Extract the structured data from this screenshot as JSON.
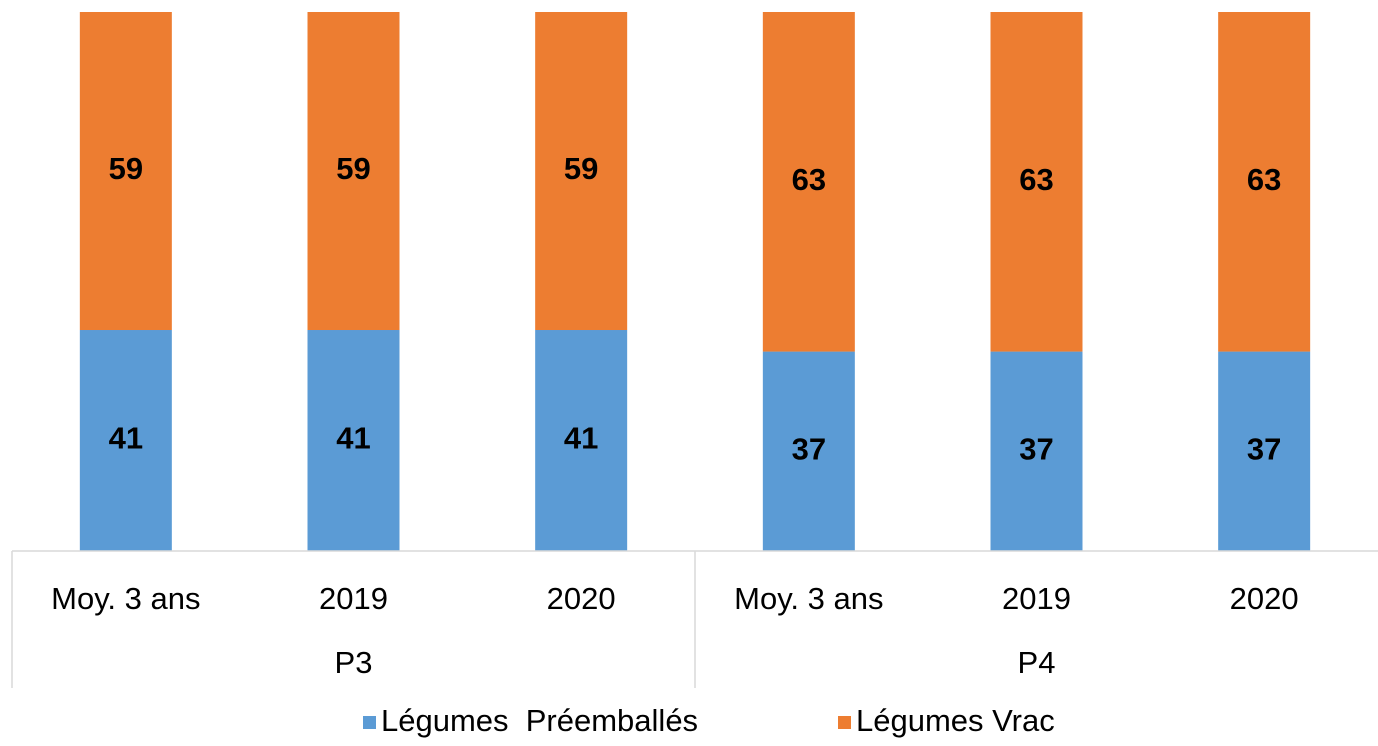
{
  "chart_data": {
    "type": "stacked_bar",
    "groups": [
      {
        "label": "P3",
        "categories": [
          "Moy. 3 ans",
          "2019",
          "2020"
        ]
      },
      {
        "label": "P4",
        "categories": [
          "Moy. 3 ans",
          "2019",
          "2020"
        ]
      }
    ],
    "series": [
      {
        "name": "Légumes  Préemballés",
        "color": "#5b9bd5",
        "values": [
          41,
          41,
          41,
          37,
          37,
          37
        ]
      },
      {
        "name": "Légumes Vrac",
        "color": "#ed7d31",
        "values": [
          59,
          59,
          59,
          63,
          63,
          63
        ]
      }
    ],
    "ylim": [
      0,
      100
    ],
    "legend": "bottom"
  }
}
